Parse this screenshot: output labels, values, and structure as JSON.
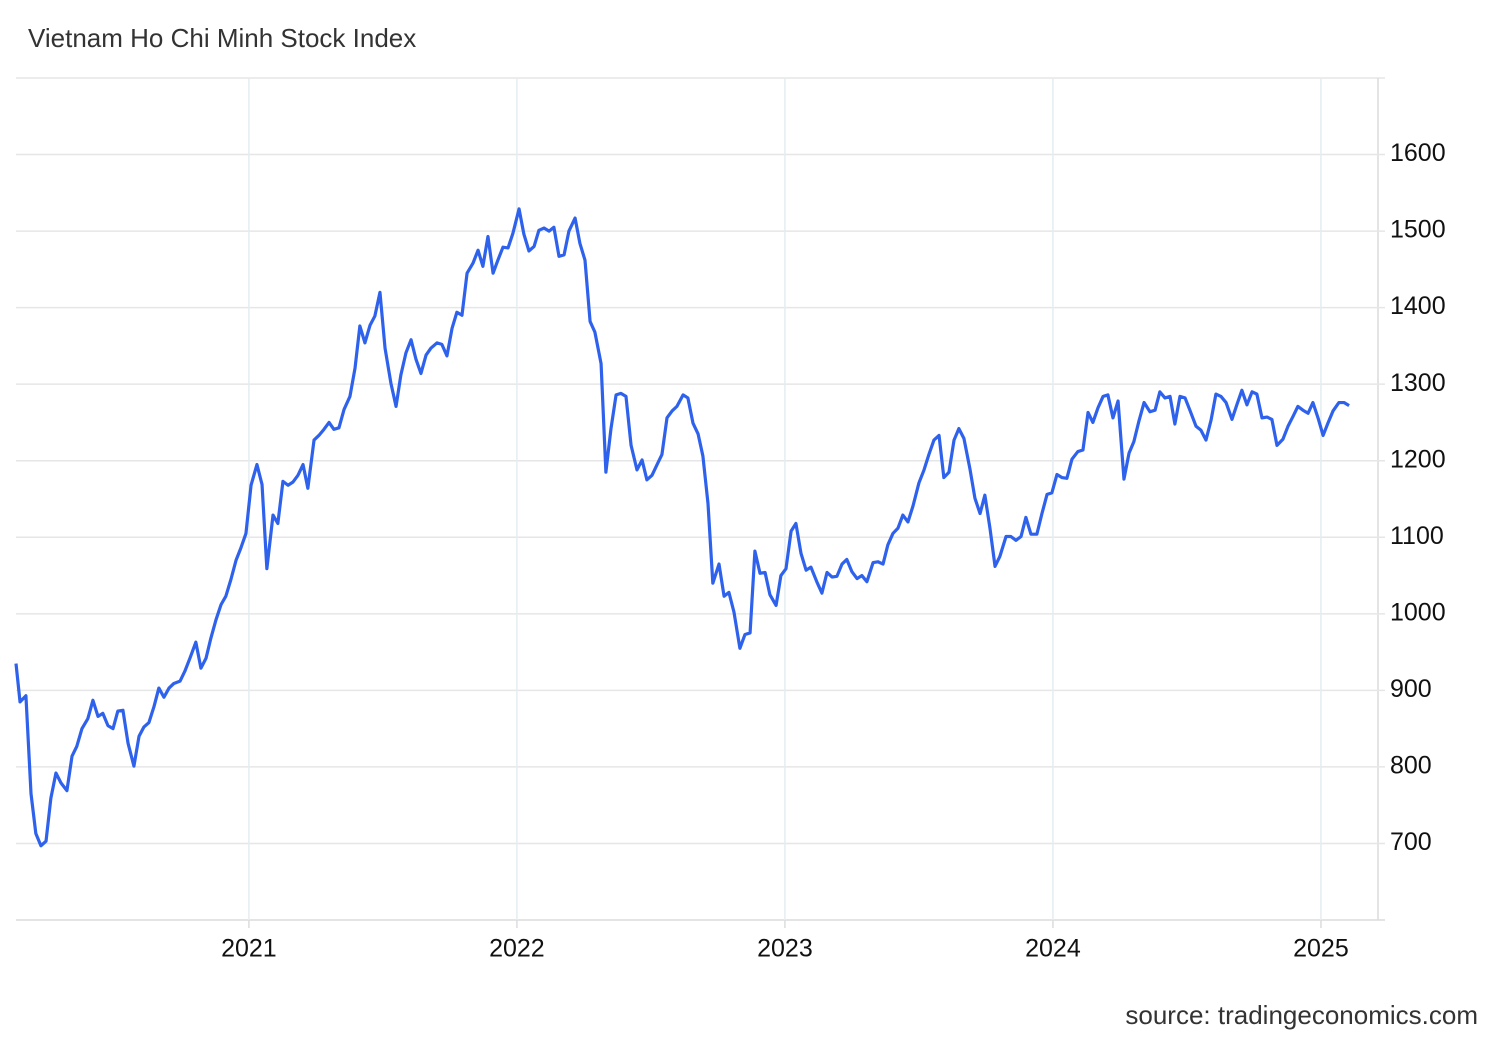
{
  "chart_data": {
    "type": "line",
    "title": "Vietnam Ho Chi Minh Stock Index",
    "source": "source: tradingeconomics.com",
    "color": "#2f62ec",
    "grid": true,
    "xlim": [
      2020.131,
      2025.239
    ],
    "xticks": [
      2021,
      2022,
      2023,
      2024,
      2025
    ],
    "ylim": [
      600,
      1700
    ],
    "yticks": [
      700,
      800,
      900,
      1000,
      1100,
      1200,
      1300,
      1400,
      1500,
      1600
    ],
    "x": [
      2020.131,
      2020.146,
      2020.168,
      2020.187,
      2020.205,
      2020.224,
      2020.243,
      2020.261,
      2020.28,
      2020.299,
      2020.321,
      2020.34,
      2020.358,
      2020.377,
      2020.399,
      2020.418,
      2020.437,
      2020.455,
      2020.474,
      2020.493,
      2020.511,
      2020.53,
      2020.549,
      2020.571,
      2020.59,
      2020.608,
      2020.627,
      2020.646,
      2020.664,
      2020.683,
      2020.702,
      2020.72,
      2020.743,
      2020.761,
      2020.78,
      2020.802,
      2020.821,
      2020.84,
      2020.858,
      2020.877,
      2020.896,
      2020.914,
      2020.933,
      2020.952,
      2020.97,
      2020.989,
      2021.008,
      2021.03,
      2021.049,
      2021.067,
      2021.09,
      2021.108,
      2021.127,
      2021.146,
      2021.164,
      2021.183,
      2021.202,
      2021.22,
      2021.243,
      2021.261,
      2021.28,
      2021.299,
      2021.317,
      2021.336,
      2021.355,
      2021.377,
      2021.396,
      2021.414,
      2021.433,
      2021.452,
      2021.47,
      2021.489,
      2021.508,
      2021.53,
      2021.549,
      2021.567,
      2021.586,
      2021.605,
      2021.623,
      2021.642,
      2021.661,
      2021.679,
      2021.702,
      2021.72,
      2021.739,
      2021.758,
      2021.776,
      2021.795,
      2021.814,
      2021.836,
      2021.855,
      2021.873,
      2021.892,
      2021.911,
      2021.929,
      2021.948,
      2021.967,
      2021.985,
      2022.008,
      2022.026,
      2022.045,
      2022.064,
      2022.082,
      2022.101,
      2022.12,
      2022.138,
      2022.157,
      2022.176,
      2022.194,
      2022.217,
      2022.235,
      2022.254,
      2022.273,
      2022.291,
      2022.314,
      2022.332,
      2022.351,
      2022.37,
      2022.388,
      2022.407,
      2022.426,
      2022.448,
      2022.467,
      2022.485,
      2022.504,
      2022.523,
      2022.541,
      2022.56,
      2022.579,
      2022.597,
      2022.62,
      2022.638,
      2022.657,
      2022.676,
      2022.694,
      2022.713,
      2022.731,
      2022.754,
      2022.773,
      2022.791,
      2022.81,
      2022.832,
      2022.851,
      2022.87,
      2022.888,
      2022.907,
      2022.926,
      2022.944,
      2022.967,
      2022.985,
      2023.004,
      2023.023,
      2023.041,
      2023.06,
      2023.079,
      2023.097,
      2023.12,
      2023.138,
      2023.157,
      2023.176,
      2023.194,
      2023.213,
      2023.231,
      2023.25,
      2023.269,
      2023.287,
      2023.306,
      2023.329,
      2023.347,
      2023.366,
      2023.384,
      2023.403,
      2023.422,
      2023.44,
      2023.459,
      2023.478,
      2023.5,
      2023.519,
      2023.537,
      2023.556,
      2023.575,
      2023.593,
      2023.612,
      2023.631,
      2023.649,
      2023.668,
      2023.69,
      2023.709,
      2023.728,
      2023.746,
      2023.765,
      2023.784,
      2023.802,
      2023.825,
      2023.843,
      2023.862,
      2023.881,
      2023.899,
      2023.918,
      2023.94,
      2023.959,
      2023.978,
      2023.996,
      2024.015,
      2024.034,
      2024.052,
      2024.071,
      2024.093,
      2024.112,
      2024.131,
      2024.149,
      2024.168,
      2024.187,
      2024.205,
      2024.224,
      2024.243,
      2024.265,
      2024.284,
      2024.302,
      2024.321,
      2024.34,
      2024.362,
      2024.381,
      2024.399,
      2024.418,
      2024.437,
      2024.455,
      2024.474,
      2024.493,
      2024.511,
      2024.534,
      2024.552,
      2024.571,
      2024.59,
      2024.608,
      2024.627,
      2024.646,
      2024.668,
      2024.687,
      2024.705,
      2024.724,
      2024.743,
      2024.761,
      2024.78,
      2024.799,
      2024.817,
      2024.836,
      2024.858,
      2024.877,
      2024.896,
      2024.914,
      2024.933,
      2024.952,
      2024.97,
      2024.989,
      2025.008,
      2025.026,
      2025.045,
      2025.067,
      2025.086,
      2025.105
    ],
    "values": [
      935,
      885,
      893,
      765,
      713,
      697,
      703,
      759,
      792,
      779,
      769,
      814,
      827,
      850,
      863,
      887,
      866,
      870,
      854,
      850,
      873,
      874,
      831,
      801,
      840,
      852,
      858,
      879,
      903,
      891,
      903,
      909,
      912,
      925,
      942,
      963,
      929,
      942,
      968,
      992,
      1012,
      1023,
      1045,
      1070,
      1086,
      1105,
      1168,
      1195,
      1169,
      1059,
      1129,
      1118,
      1173,
      1168,
      1172,
      1181,
      1195,
      1164,
      1227,
      1233,
      1241,
      1250,
      1241,
      1243,
      1267,
      1284,
      1321,
      1376,
      1354,
      1377,
      1389,
      1420,
      1347,
      1301,
      1271,
      1312,
      1341,
      1358,
      1333,
      1314,
      1338,
      1347,
      1354,
      1352,
      1337,
      1373,
      1394,
      1390,
      1445,
      1458,
      1475,
      1454,
      1493,
      1445,
      1462,
      1479,
      1478,
      1497,
      1529,
      1496,
      1474,
      1480,
      1501,
      1504,
      1500,
      1505,
      1467,
      1469,
      1500,
      1517,
      1484,
      1462,
      1382,
      1368,
      1327,
      1185,
      1242,
      1286,
      1288,
      1284,
      1220,
      1188,
      1201,
      1175,
      1181,
      1195,
      1208,
      1256,
      1265,
      1271,
      1286,
      1282,
      1249,
      1235,
      1206,
      1144,
      1040,
      1065,
      1023,
      1028,
      1002,
      955,
      973,
      975,
      1082,
      1053,
      1054,
      1025,
      1011,
      1050,
      1059,
      1108,
      1118,
      1079,
      1057,
      1061,
      1041,
      1027,
      1054,
      1048,
      1049,
      1065,
      1071,
      1055,
      1046,
      1050,
      1042,
      1067,
      1068,
      1065,
      1090,
      1105,
      1112,
      1129,
      1120,
      1141,
      1171,
      1188,
      1208,
      1227,
      1233,
      1178,
      1185,
      1227,
      1242,
      1229,
      1190,
      1151,
      1131,
      1155,
      1112,
      1062,
      1075,
      1101,
      1101,
      1096,
      1101,
      1126,
      1104,
      1104,
      1131,
      1156,
      1158,
      1182,
      1178,
      1177,
      1202,
      1212,
      1214,
      1263,
      1250,
      1269,
      1284,
      1286,
      1256,
      1278,
      1176,
      1210,
      1225,
      1252,
      1276,
      1264,
      1266,
      1290,
      1282,
      1284,
      1248,
      1284,
      1282,
      1266,
      1245,
      1240,
      1227,
      1253,
      1287,
      1284,
      1276,
      1254,
      1274,
      1292,
      1273,
      1290,
      1287,
      1256,
      1257,
      1254,
      1220,
      1228,
      1245,
      1258,
      1271,
      1266,
      1262,
      1276,
      1256,
      1233,
      1249,
      1265,
      1276,
      1276,
      1272
    ]
  }
}
